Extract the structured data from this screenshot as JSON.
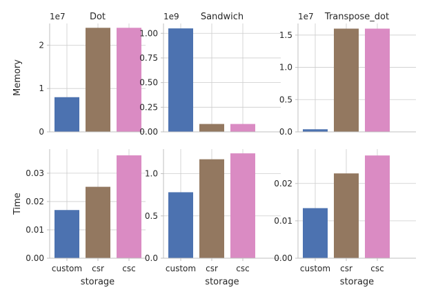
{
  "chart_data": {
    "type": "bar",
    "grid": true,
    "categories": [
      "custom",
      "csr",
      "csc"
    ],
    "colors": {
      "custom": "#4c72b0",
      "csr": "#937860",
      "csc": "#da8bc3"
    },
    "panels": [
      {
        "row": "Memory",
        "col": "Dot",
        "title": "Dot",
        "ylabel": "Memory",
        "xlabel": "",
        "offset": "1e7",
        "values": [
          8.0,
          24.0,
          24.0
        ],
        "ylim": [
          0,
          25
        ],
        "ticks": [
          0,
          1,
          2
        ],
        "tick_scale": 10,
        "tick_labels": [
          "0",
          "1",
          "2"
        ]
      },
      {
        "row": "Memory",
        "col": "Sandwich",
        "title": "Sandwich",
        "ylabel": "",
        "xlabel": "",
        "offset": "1e9",
        "values": [
          1.05,
          0.08,
          0.08
        ],
        "ylim": [
          0,
          1.1
        ],
        "ticks": [
          0,
          0.25,
          0.5,
          0.75,
          1.0
        ],
        "tick_scale": 1,
        "tick_labels": [
          "0.00",
          "0.25",
          "0.50",
          "0.75",
          "1.00"
        ]
      },
      {
        "row": "Memory",
        "col": "Transpose_dot",
        "title": "Transpose_dot",
        "ylabel": "",
        "xlabel": "",
        "offset": "1e7",
        "values": [
          0.04,
          1.6,
          1.6
        ],
        "ylim": [
          0,
          1.68
        ],
        "ticks": [
          0,
          0.5,
          1.0,
          1.5
        ],
        "tick_scale": 1,
        "tick_labels": [
          "0.0",
          "0.5",
          "1.0",
          "1.5"
        ]
      },
      {
        "row": "Time",
        "col": "Dot",
        "title": "",
        "ylabel": "Time",
        "xlabel": "storage",
        "offset": "",
        "values": [
          0.017,
          0.0252,
          0.0363
        ],
        "ylim": [
          0,
          0.0385
        ],
        "ticks": [
          0,
          0.01,
          0.02,
          0.03
        ],
        "tick_scale": 1,
        "tick_labels": [
          "0.00",
          "0.01",
          "0.02",
          "0.03"
        ]
      },
      {
        "row": "Time",
        "col": "Sandwich",
        "title": "",
        "ylabel": "",
        "xlabel": "storage",
        "offset": "",
        "values": [
          0.78,
          1.17,
          1.24
        ],
        "ylim": [
          0,
          1.29
        ],
        "ticks": [
          0,
          0.5,
          1.0
        ],
        "tick_scale": 1,
        "tick_labels": [
          "0.0",
          "0.5",
          "1.0"
        ]
      },
      {
        "row": "Time",
        "col": "Transpose_dot",
        "title": "",
        "ylabel": "",
        "xlabel": "storage",
        "offset": "",
        "values": [
          0.0134,
          0.0227,
          0.0275
        ],
        "ylim": [
          0,
          0.0292
        ],
        "ticks": [
          0,
          0.01,
          0.02
        ],
        "tick_scale": 1,
        "tick_labels": [
          "0.00",
          "0.01",
          "0.02"
        ]
      }
    ]
  }
}
